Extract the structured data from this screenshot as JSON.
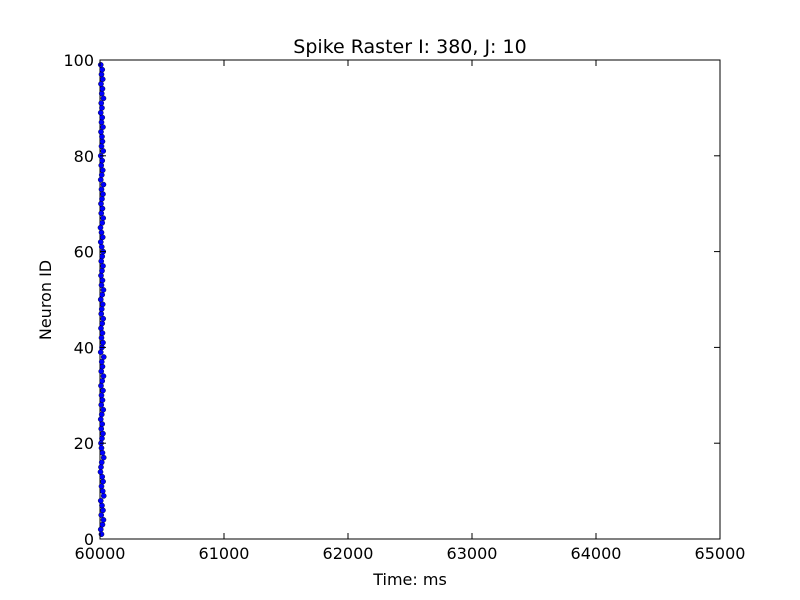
{
  "chart_data": {
    "type": "scatter",
    "title": "Spike Raster I: 380, J: 10",
    "xlabel": "Time: ms",
    "ylabel": "Neuron ID",
    "xlim": [
      60000,
      65000
    ],
    "ylim": [
      0,
      100
    ],
    "x_ticks": [
      "60000",
      "61000",
      "62000",
      "63000",
      "64000",
      "65000"
    ],
    "y_ticks": [
      "0",
      "20",
      "40",
      "60",
      "80",
      "100"
    ],
    "grid": false,
    "marker_color": "#0000ff",
    "series": [
      {
        "points": [
          {
            "x": 60012,
            "y": 1
          },
          {
            "x": 60006,
            "y": 2
          },
          {
            "x": 60020,
            "y": 3
          },
          {
            "x": 60028,
            "y": 4
          },
          {
            "x": 60010,
            "y": 5
          },
          {
            "x": 60024,
            "y": 6
          },
          {
            "x": 60016,
            "y": 7
          },
          {
            "x": 60006,
            "y": 8
          },
          {
            "x": 60030,
            "y": 9
          },
          {
            "x": 60022,
            "y": 10
          },
          {
            "x": 60012,
            "y": 11
          },
          {
            "x": 60025,
            "y": 12
          },
          {
            "x": 60018,
            "y": 13
          },
          {
            "x": 60004,
            "y": 14
          },
          {
            "x": 60008,
            "y": 15
          },
          {
            "x": 60014,
            "y": 16
          },
          {
            "x": 60030,
            "y": 17
          },
          {
            "x": 60020,
            "y": 18
          },
          {
            "x": 60012,
            "y": 19
          },
          {
            "x": 60008,
            "y": 20
          },
          {
            "x": 60016,
            "y": 21
          },
          {
            "x": 60024,
            "y": 22
          },
          {
            "x": 60010,
            "y": 23
          },
          {
            "x": 60018,
            "y": 24
          },
          {
            "x": 60006,
            "y": 25
          },
          {
            "x": 60014,
            "y": 26
          },
          {
            "x": 60026,
            "y": 27
          },
          {
            "x": 60010,
            "y": 28
          },
          {
            "x": 60020,
            "y": 29
          },
          {
            "x": 60012,
            "y": 30
          },
          {
            "x": 60024,
            "y": 31
          },
          {
            "x": 60008,
            "y": 32
          },
          {
            "x": 60018,
            "y": 33
          },
          {
            "x": 60028,
            "y": 34
          },
          {
            "x": 60010,
            "y": 35
          },
          {
            "x": 60020,
            "y": 36
          },
          {
            "x": 60014,
            "y": 37
          },
          {
            "x": 60030,
            "y": 38
          },
          {
            "x": 60006,
            "y": 39
          },
          {
            "x": 60016,
            "y": 40
          },
          {
            "x": 60024,
            "y": 41
          },
          {
            "x": 60012,
            "y": 42
          },
          {
            "x": 60020,
            "y": 43
          },
          {
            "x": 60008,
            "y": 44
          },
          {
            "x": 60018,
            "y": 45
          },
          {
            "x": 60026,
            "y": 46
          },
          {
            "x": 60010,
            "y": 47
          },
          {
            "x": 60014,
            "y": 48
          },
          {
            "x": 60022,
            "y": 49
          },
          {
            "x": 60006,
            "y": 50
          },
          {
            "x": 60018,
            "y": 51
          },
          {
            "x": 60028,
            "y": 52
          },
          {
            "x": 60012,
            "y": 53
          },
          {
            "x": 60020,
            "y": 54
          },
          {
            "x": 60008,
            "y": 55
          },
          {
            "x": 60016,
            "y": 56
          },
          {
            "x": 60024,
            "y": 57
          },
          {
            "x": 60010,
            "y": 58
          },
          {
            "x": 60018,
            "y": 59
          },
          {
            "x": 60026,
            "y": 60
          },
          {
            "x": 60014,
            "y": 61
          },
          {
            "x": 60006,
            "y": 62
          },
          {
            "x": 60022,
            "y": 63
          },
          {
            "x": 60012,
            "y": 64
          },
          {
            "x": 60004,
            "y": 65
          },
          {
            "x": 60018,
            "y": 66
          },
          {
            "x": 60026,
            "y": 67
          },
          {
            "x": 60010,
            "y": 68
          },
          {
            "x": 60020,
            "y": 69
          },
          {
            "x": 60008,
            "y": 70
          },
          {
            "x": 60016,
            "y": 71
          },
          {
            "x": 60024,
            "y": 72
          },
          {
            "x": 60012,
            "y": 73
          },
          {
            "x": 60028,
            "y": 74
          },
          {
            "x": 60006,
            "y": 75
          },
          {
            "x": 60014,
            "y": 76
          },
          {
            "x": 60022,
            "y": 77
          },
          {
            "x": 60010,
            "y": 78
          },
          {
            "x": 60018,
            "y": 79
          },
          {
            "x": 60006,
            "y": 80
          },
          {
            "x": 60026,
            "y": 81
          },
          {
            "x": 60012,
            "y": 82
          },
          {
            "x": 60020,
            "y": 83
          },
          {
            "x": 60016,
            "y": 84
          },
          {
            "x": 60008,
            "y": 85
          },
          {
            "x": 60024,
            "y": 86
          },
          {
            "x": 60012,
            "y": 87
          },
          {
            "x": 60018,
            "y": 88
          },
          {
            "x": 60006,
            "y": 89
          },
          {
            "x": 60016,
            "y": 90
          },
          {
            "x": 60010,
            "y": 91
          },
          {
            "x": 60028,
            "y": 92
          },
          {
            "x": 60014,
            "y": 93
          },
          {
            "x": 60020,
            "y": 94
          },
          {
            "x": 60008,
            "y": 95
          },
          {
            "x": 60022,
            "y": 96
          },
          {
            "x": 60012,
            "y": 97
          },
          {
            "x": 60018,
            "y": 98
          },
          {
            "x": 60006,
            "y": 99
          }
        ]
      }
    ]
  }
}
